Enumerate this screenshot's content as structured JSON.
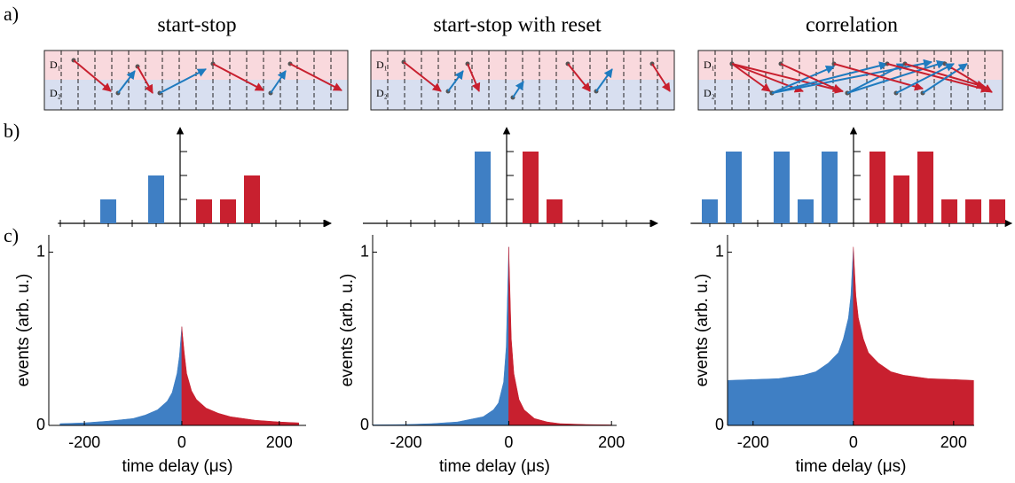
{
  "panel_labels": [
    "a)",
    "b)",
    "c)"
  ],
  "diagrams": [
    {
      "d1": "D₁",
      "d2": "D₂"
    },
    {
      "d1": "D₁",
      "d2": "D₂"
    },
    {
      "d1": "D₁",
      "d2": "D₂"
    }
  ],
  "chart_data": [
    {
      "type": "bar",
      "title": "start-stop",
      "x": [
        -3,
        -1,
        1,
        2,
        3
      ],
      "values": [
        1,
        2,
        1,
        1,
        2
      ],
      "colors": [
        "#3f7fc4",
        "#3f7fc4",
        "#c8202f",
        "#c8202f",
        "#c8202f"
      ],
      "xlim": [
        -5.1,
        6.3
      ],
      "xticks": [
        -5,
        -4,
        -3,
        -2,
        -1,
        0,
        1,
        2,
        3,
        4,
        5,
        6
      ],
      "ylim": [
        0,
        4
      ],
      "yticks": [
        1,
        2,
        3
      ]
    },
    {
      "type": "bar",
      "title": "start-stop with reset",
      "x": [
        -1,
        1,
        2
      ],
      "values": [
        3,
        3,
        1
      ],
      "colors": [
        "#3f7fc4",
        "#c8202f",
        "#c8202f"
      ],
      "xlim": [
        -6,
        6.3
      ],
      "xticks": [
        -5,
        -4,
        -3,
        -2,
        -1,
        0,
        1,
        2,
        3,
        4,
        5,
        6
      ],
      "ylim": [
        0,
        4
      ],
      "yticks": [
        1,
        2,
        3
      ]
    },
    {
      "type": "bar",
      "title": "correlation",
      "x": [
        -6,
        -5,
        -3,
        -2,
        -1,
        1,
        2,
        3,
        4,
        5,
        6
      ],
      "values": [
        1,
        3,
        3,
        1,
        3,
        3,
        2,
        3,
        1,
        1,
        1
      ],
      "colors": [
        "#3f7fc4",
        "#3f7fc4",
        "#3f7fc4",
        "#3f7fc4",
        "#3f7fc4",
        "#c8202f",
        "#c8202f",
        "#c8202f",
        "#c8202f",
        "#c8202f",
        "#c8202f"
      ],
      "xlim": [
        -6.8,
        6.6
      ],
      "xticks": [
        -6,
        -5,
        -4,
        -3,
        -2,
        -1,
        0,
        1,
        2,
        3,
        4,
        5,
        6
      ],
      "ylim": [
        0,
        4
      ],
      "yticks": [
        1,
        2,
        3
      ]
    },
    {
      "type": "area",
      "x_label": "time delay (μs)",
      "y_label": "events (arb. u.)",
      "xlim": [
        -273,
        255
      ],
      "xticks": [
        -200,
        0,
        200
      ],
      "ylim": [
        0,
        1.1
      ],
      "yticks": [
        0,
        1
      ],
      "series": [
        {
          "color": "#3f7fc4",
          "x": [
            -250,
            -200,
            -150,
            -100,
            -75,
            -50,
            -30,
            -20,
            -10,
            -5,
            0
          ],
          "values": [
            0.01,
            0.015,
            0.025,
            0.04,
            0.06,
            0.09,
            0.14,
            0.19,
            0.3,
            0.4,
            0.57
          ]
        },
        {
          "color": "#c8202f",
          "x": [
            0,
            5,
            10,
            20,
            30,
            50,
            75,
            100,
            150,
            200,
            240
          ],
          "values": [
            0.57,
            0.42,
            0.3,
            0.2,
            0.15,
            0.1,
            0.07,
            0.05,
            0.03,
            0.02,
            0.015
          ]
        }
      ]
    },
    {
      "type": "area",
      "x_label": "time delay (μs)",
      "y_label": "events (arb. u.)",
      "xlim": [
        -265,
        210
      ],
      "xticks": [
        -200,
        0,
        200
      ],
      "ylim": [
        0,
        1.1
      ],
      "yticks": [
        0,
        1
      ],
      "series": [
        {
          "color": "#3f7fc4",
          "x": [
            -265,
            -200,
            -150,
            -100,
            -50,
            -30,
            -20,
            -10,
            -5,
            0
          ],
          "values": [
            0.003,
            0.005,
            0.01,
            0.02,
            0.05,
            0.09,
            0.13,
            0.25,
            0.45,
            1.03
          ]
        },
        {
          "color": "#c8202f",
          "x": [
            0,
            5,
            10,
            20,
            30,
            50,
            75,
            100,
            150,
            200
          ],
          "values": [
            1.03,
            0.5,
            0.3,
            0.15,
            0.09,
            0.04,
            0.02,
            0.01,
            0.005,
            0.003
          ]
        }
      ]
    },
    {
      "type": "area",
      "x_label": "time delay (μs)",
      "y_label": "events (arb. u.)",
      "xlim": [
        -251,
        241
      ],
      "xticks": [
        -200,
        0,
        200
      ],
      "ylim": [
        0,
        1.1
      ],
      "yticks": [
        0,
        1
      ],
      "series": [
        {
          "color": "#3f7fc4",
          "x": [
            -250,
            -200,
            -150,
            -100,
            -75,
            -50,
            -30,
            -20,
            -10,
            -5,
            0
          ],
          "values": [
            0.26,
            0.265,
            0.27,
            0.29,
            0.31,
            0.36,
            0.42,
            0.5,
            0.62,
            0.75,
            1.03
          ]
        },
        {
          "color": "#c8202f",
          "x": [
            0,
            5,
            10,
            20,
            30,
            50,
            75,
            100,
            150,
            200,
            240
          ],
          "values": [
            1.03,
            0.75,
            0.62,
            0.5,
            0.42,
            0.36,
            0.31,
            0.29,
            0.27,
            0.265,
            0.26
          ]
        }
      ]
    }
  ]
}
